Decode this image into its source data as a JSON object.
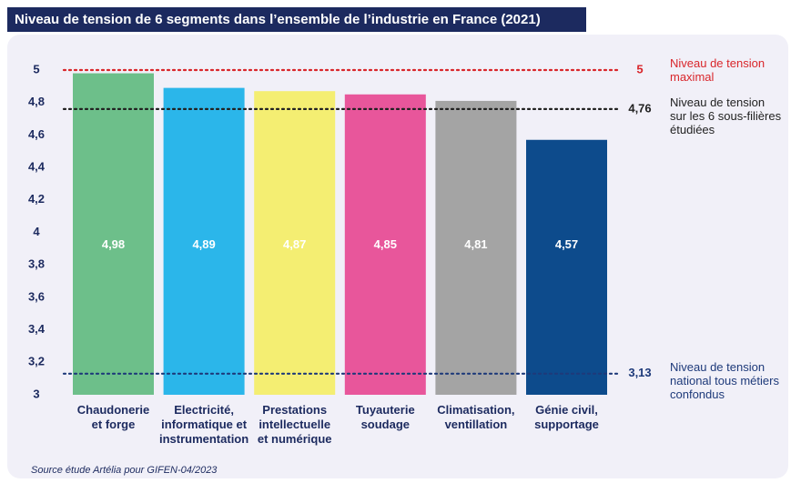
{
  "chart_data": {
    "type": "bar",
    "title": "Niveau de tension de 6 segments dans l’ensemble de l’industrie en France (2021)",
    "categories": [
      [
        "Chaudonerie",
        "et forge"
      ],
      [
        "Electricité,",
        "informatique et",
        "instrumentation"
      ],
      [
        "Prestations",
        "intellectuelle",
        "et numérique"
      ],
      [
        "Tuyauterie",
        "soudage"
      ],
      [
        "Climatisation,",
        "ventillation"
      ],
      [
        "Génie civil,",
        "supportage"
      ]
    ],
    "values": [
      4.98,
      4.89,
      4.87,
      4.85,
      4.81,
      4.57
    ],
    "value_labels": [
      "4,98",
      "4,89",
      "4,87",
      "4,85",
      "4,81",
      "4,57"
    ],
    "colors": [
      "#6dbf8a",
      "#2bb6ea",
      "#f4ee72",
      "#e8569b",
      "#a4a4a4",
      "#0d4b8c"
    ],
    "ylim": [
      3,
      5
    ],
    "yticks": [
      3,
      {
        "value": 3.2,
        "label": "3,2"
      },
      {
        "value": 3.4,
        "label": "3,4"
      },
      {
        "value": 3.6,
        "label": "3,6"
      },
      {
        "value": 3.8,
        "label": "3,8"
      },
      4,
      {
        "value": 4.2,
        "label": "4,2"
      },
      {
        "value": 4.4,
        "label": "4,4"
      },
      {
        "value": 4.6,
        "label": "4,6"
      },
      {
        "value": 4.8,
        "label": "4,8"
      },
      5
    ],
    "reference_lines": [
      {
        "value": 5,
        "label": "5",
        "description": [
          "Niveau de tension",
          "maximal"
        ],
        "color": "#d9262b"
      },
      {
        "value": 4.76,
        "label": "4,76",
        "description": [
          "Niveau de tension",
          "sur les 6 sous-filières",
          "étudiées"
        ],
        "color": "#222222"
      },
      {
        "value": 3.13,
        "label": "3,13",
        "description": [
          "Niveau de tension",
          "national tous métiers",
          "confondus"
        ],
        "color": "#1e3a7a"
      }
    ],
    "source": "Source étude Artélia pour GIFEN-04/2023"
  }
}
